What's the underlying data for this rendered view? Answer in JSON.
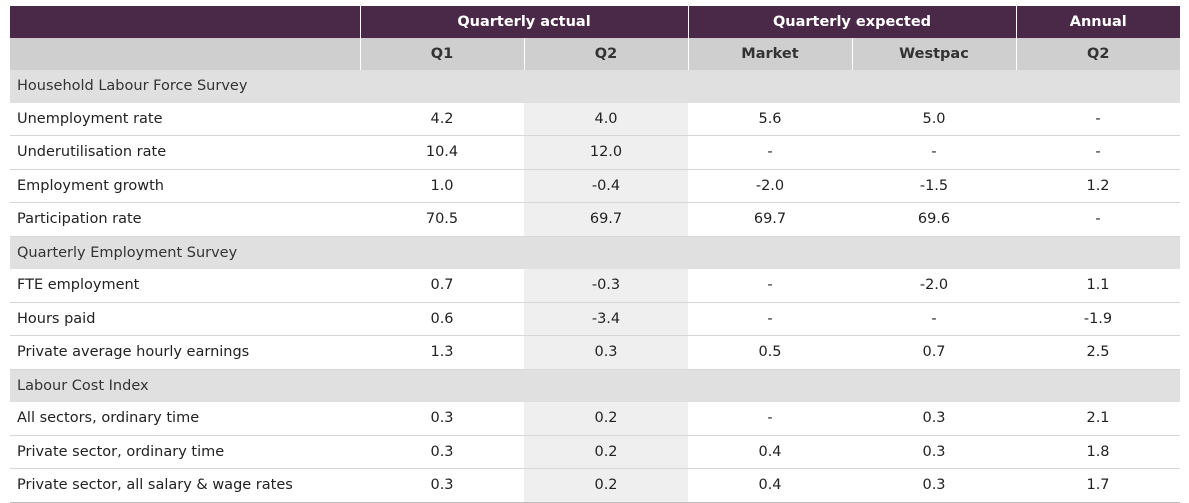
{
  "table": {
    "group_headers": [
      "",
      "Quarterly actual",
      "Quarterly expected",
      "Annual"
    ],
    "column_headers": [
      "",
      "Q1",
      "Q2",
      "Market",
      "Westpac",
      "Q2"
    ],
    "sections": [
      {
        "title": "Household Labour Force Survey",
        "rows": [
          {
            "label": "Unemployment rate",
            "values": [
              "4.2",
              "4.0",
              "5.6",
              "5.0",
              "-"
            ]
          },
          {
            "label": "Underutilisation rate",
            "values": [
              "10.4",
              "12.0",
              "-",
              "-",
              "-"
            ]
          },
          {
            "label": "Employment growth",
            "values": [
              "1.0",
              "-0.4",
              "-2.0",
              "-1.5",
              "1.2"
            ]
          },
          {
            "label": "Participation rate",
            "values": [
              "70.5",
              "69.7",
              "69.7",
              "69.6",
              "-"
            ]
          }
        ]
      },
      {
        "title": "Quarterly Employment Survey",
        "rows": [
          {
            "label": "FTE employment",
            "values": [
              "0.7",
              "-0.3",
              "-",
              "-2.0",
              "1.1"
            ]
          },
          {
            "label": "Hours paid",
            "values": [
              "0.6",
              "-3.4",
              "-",
              "-",
              "-1.9"
            ]
          },
          {
            "label": "Private average hourly earnings",
            "values": [
              "1.3",
              "0.3",
              "0.5",
              "0.7",
              "2.5"
            ]
          }
        ]
      },
      {
        "title": "Labour Cost Index",
        "rows": [
          {
            "label": "All sectors, ordinary time",
            "values": [
              "0.3",
              "0.2",
              "-",
              "0.3",
              "2.1"
            ]
          },
          {
            "label": "Private sector, ordinary time",
            "values": [
              "0.3",
              "0.2",
              "0.4",
              "0.3",
              "1.8"
            ]
          },
          {
            "label": "Private sector, all salary & wage rates",
            "values": [
              "0.3",
              "0.2",
              "0.4",
              "0.3",
              "1.7"
            ]
          }
        ]
      }
    ]
  },
  "colors": {
    "header_bg": "#4a2847",
    "subheader_bg": "#cfcfcf",
    "section_bg": "#e0e0e1",
    "q2_column_bg": "#efefef"
  }
}
